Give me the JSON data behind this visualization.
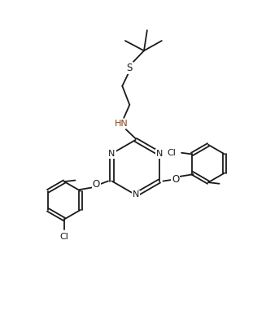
{
  "bg_color": "#ffffff",
  "line_color": "#1a1a1a",
  "hn_color": "#8B4513",
  "figsize": [
    3.27,
    3.92
  ],
  "dpi": 100,
  "xlim": [
    0,
    10
  ],
  "ylim": [
    0,
    12
  ]
}
